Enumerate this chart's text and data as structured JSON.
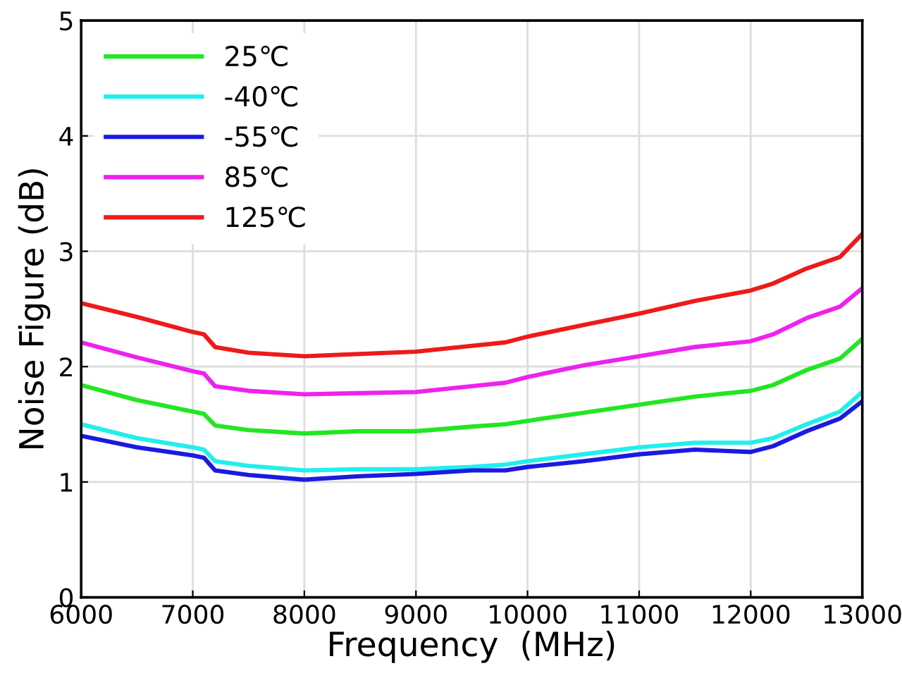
{
  "chart_data": {
    "type": "line",
    "xlabel": "Frequency  (MHz)",
    "ylabel": "Noise Figure (dB)",
    "x": [
      6000,
      6500,
      7000,
      7100,
      7200,
      7500,
      8000,
      8500,
      9000,
      9500,
      9800,
      10000,
      10500,
      11000,
      11500,
      12000,
      12200,
      12500,
      12800,
      13000
    ],
    "series": [
      {
        "name": "25℃",
        "color": "#22e622",
        "values": [
          1.84,
          1.71,
          1.61,
          1.59,
          1.49,
          1.45,
          1.42,
          1.44,
          1.44,
          1.48,
          1.5,
          1.53,
          1.6,
          1.67,
          1.74,
          1.79,
          1.84,
          1.97,
          2.07,
          2.24
        ]
      },
      {
        "name": "-40℃",
        "color": "#22eeee",
        "values": [
          1.5,
          1.38,
          1.3,
          1.28,
          1.18,
          1.14,
          1.1,
          1.11,
          1.11,
          1.13,
          1.15,
          1.18,
          1.24,
          1.3,
          1.34,
          1.34,
          1.38,
          1.5,
          1.61,
          1.78
        ]
      },
      {
        "name": "-55℃",
        "color": "#1a1ae0",
        "values": [
          1.4,
          1.3,
          1.23,
          1.21,
          1.1,
          1.06,
          1.02,
          1.05,
          1.07,
          1.1,
          1.1,
          1.13,
          1.18,
          1.24,
          1.28,
          1.26,
          1.31,
          1.44,
          1.55,
          1.7
        ]
      },
      {
        "name": "85℃",
        "color": "#ee22ee",
        "values": [
          2.21,
          2.08,
          1.96,
          1.94,
          1.83,
          1.79,
          1.76,
          1.77,
          1.78,
          1.83,
          1.86,
          1.91,
          2.01,
          2.09,
          2.17,
          2.22,
          2.28,
          2.42,
          2.52,
          2.68
        ]
      },
      {
        "name": "125℃",
        "color": "#ee1a1a",
        "values": [
          2.55,
          2.43,
          2.3,
          2.28,
          2.17,
          2.12,
          2.09,
          2.11,
          2.13,
          2.18,
          2.21,
          2.26,
          2.36,
          2.46,
          2.57,
          2.66,
          2.72,
          2.85,
          2.95,
          3.15
        ]
      }
    ],
    "xlim": [
      6000,
      13000
    ],
    "xticks": [
      6000,
      7000,
      8000,
      9000,
      10000,
      11000,
      12000,
      13000
    ],
    "ylim": [
      0,
      5
    ],
    "yticks": [
      0,
      1,
      2,
      3,
      4,
      5
    ],
    "grid": true,
    "legend": "top left",
    "marker": "none",
    "line_style": "solid"
  }
}
